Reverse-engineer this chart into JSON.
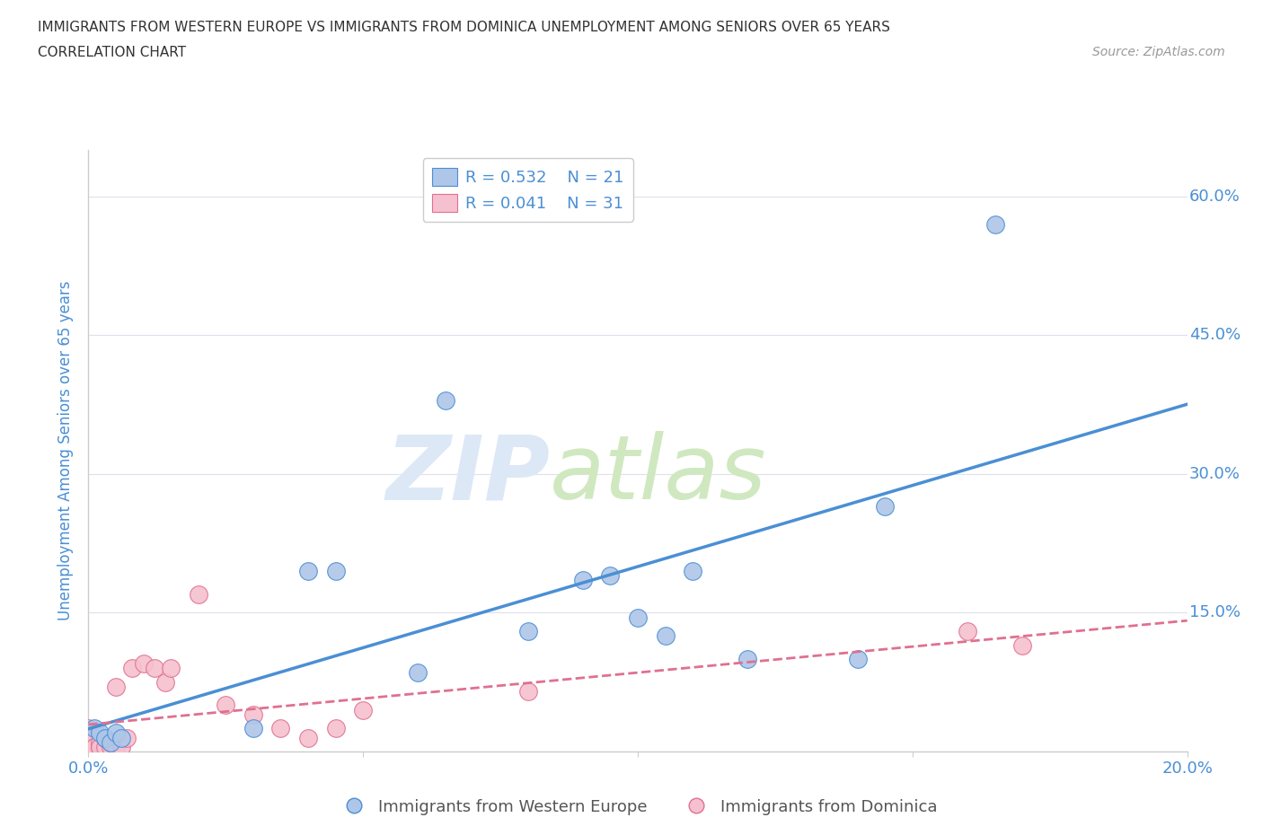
{
  "title": "IMMIGRANTS FROM WESTERN EUROPE VS IMMIGRANTS FROM DOMINICA UNEMPLOYMENT AMONG SENIORS OVER 65 YEARS",
  "subtitle": "CORRELATION CHART",
  "source": "Source: ZipAtlas.com",
  "ylabel": "Unemployment Among Seniors over 65 years",
  "xlim": [
    0.0,
    0.2
  ],
  "ylim": [
    0.0,
    0.65
  ],
  "yticks": [
    0.0,
    0.15,
    0.3,
    0.45,
    0.6
  ],
  "xticks": [
    0.0,
    0.05,
    0.1,
    0.15,
    0.2
  ],
  "blue_R": 0.532,
  "blue_N": 21,
  "pink_R": 0.041,
  "pink_N": 31,
  "blue_color": "#aec6e8",
  "pink_color": "#f5c0cf",
  "blue_line_color": "#4a8fd4",
  "pink_line_color": "#e07090",
  "legend_label_blue": "Immigrants from Western Europe",
  "legend_label_pink": "Immigrants from Dominica",
  "blue_x": [
    0.001,
    0.002,
    0.003,
    0.004,
    0.005,
    0.006,
    0.03,
    0.04,
    0.045,
    0.06,
    0.065,
    0.08,
    0.09,
    0.095,
    0.1,
    0.105,
    0.11,
    0.12,
    0.14,
    0.145,
    0.165
  ],
  "blue_y": [
    0.025,
    0.02,
    0.015,
    0.01,
    0.02,
    0.015,
    0.025,
    0.195,
    0.195,
    0.085,
    0.38,
    0.13,
    0.185,
    0.19,
    0.145,
    0.125,
    0.195,
    0.1,
    0.1,
    0.265,
    0.57
  ],
  "pink_x": [
    0.0,
    0.0,
    0.001,
    0.001,
    0.001,
    0.002,
    0.002,
    0.002,
    0.003,
    0.003,
    0.004,
    0.004,
    0.005,
    0.005,
    0.006,
    0.007,
    0.008,
    0.01,
    0.012,
    0.014,
    0.015,
    0.02,
    0.025,
    0.03,
    0.035,
    0.04,
    0.045,
    0.05,
    0.08,
    0.16,
    0.17
  ],
  "pink_y": [
    0.025,
    0.01,
    0.015,
    0.005,
    0.005,
    0.005,
    0.01,
    0.005,
    0.005,
    0.015,
    0.005,
    0.01,
    0.005,
    0.07,
    0.005,
    0.015,
    0.09,
    0.095,
    0.09,
    0.075,
    0.09,
    0.17,
    0.05,
    0.04,
    0.025,
    0.015,
    0.025,
    0.045,
    0.065,
    0.13,
    0.115
  ],
  "background_color": "#ffffff",
  "grid_color": "#e0e0ee",
  "title_color": "#333333",
  "axis_label_color": "#4a8fd4",
  "tick_color": "#4a8fd4",
  "watermark_zip_color": "#dce8f5",
  "watermark_atlas_color": "#d0e8c0"
}
